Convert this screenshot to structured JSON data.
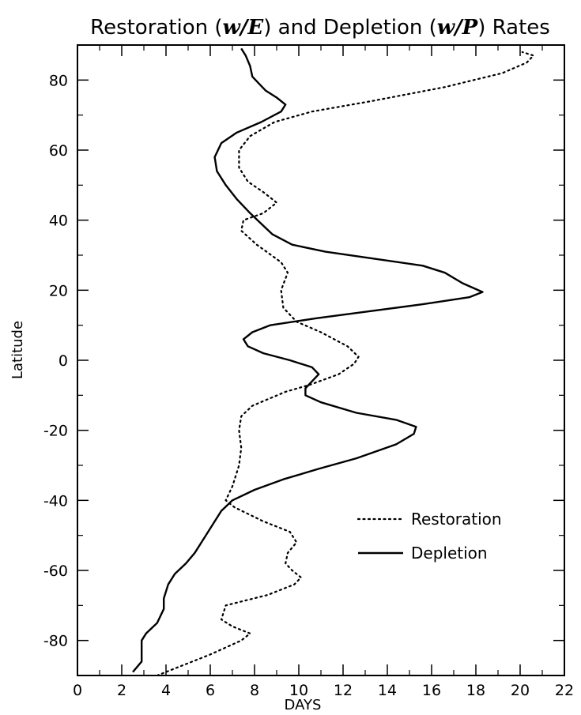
{
  "chart_data": {
    "type": "line",
    "title": "Restoration (w/E) and Depletion (w/P) Rates",
    "title_parts": {
      "t1": "Restoration (",
      "v1": "w/E",
      "t2": ") and Depletion (",
      "v2": "w/P",
      "t3": ") Rates"
    },
    "xlabel": "DAYS",
    "ylabel": "Latitude",
    "xlim": [
      0,
      22
    ],
    "ylim": [
      -90,
      90
    ],
    "xticks": [
      0,
      2,
      4,
      6,
      8,
      10,
      12,
      14,
      16,
      18,
      20,
      22
    ],
    "yticks": [
      -80,
      -60,
      -40,
      -20,
      0,
      20,
      40,
      60,
      80
    ],
    "grid": false,
    "legend_position": "lower-right",
    "series": [
      {
        "name": "Restoration",
        "style": "dotted",
        "color": "#000000",
        "points": [
          [
            3.6,
            -90
          ],
          [
            4.4,
            -88
          ],
          [
            6.0,
            -84
          ],
          [
            7.4,
            -80
          ],
          [
            7.8,
            -78
          ],
          [
            7.0,
            -76
          ],
          [
            6.5,
            -74
          ],
          [
            6.7,
            -70
          ],
          [
            8.6,
            -67
          ],
          [
            9.8,
            -64
          ],
          [
            10.1,
            -62
          ],
          [
            9.7,
            -60
          ],
          [
            9.4,
            -58
          ],
          [
            9.5,
            -55
          ],
          [
            9.9,
            -52
          ],
          [
            9.6,
            -49
          ],
          [
            8.4,
            -46
          ],
          [
            7.1,
            -42
          ],
          [
            6.7,
            -40
          ],
          [
            7.0,
            -36
          ],
          [
            7.3,
            -30
          ],
          [
            7.4,
            -25
          ],
          [
            7.3,
            -20
          ],
          [
            7.4,
            -16
          ],
          [
            7.9,
            -13
          ],
          [
            9.4,
            -9
          ],
          [
            10.5,
            -7
          ],
          [
            11.8,
            -4
          ],
          [
            12.5,
            -1
          ],
          [
            12.7,
            1
          ],
          [
            12.2,
            4
          ],
          [
            11.0,
            8
          ],
          [
            9.9,
            11
          ],
          [
            9.3,
            15
          ],
          [
            9.2,
            20
          ],
          [
            9.5,
            25
          ],
          [
            9.2,
            28
          ],
          [
            8.1,
            33
          ],
          [
            7.4,
            37
          ],
          [
            7.5,
            40
          ],
          [
            8.4,
            42
          ],
          [
            9.0,
            45
          ],
          [
            8.4,
            48
          ],
          [
            7.7,
            51
          ],
          [
            7.3,
            55
          ],
          [
            7.3,
            60
          ],
          [
            7.8,
            64
          ],
          [
            8.9,
            68
          ],
          [
            10.6,
            71
          ],
          [
            13.3,
            74
          ],
          [
            16.6,
            78
          ],
          [
            19.2,
            82
          ],
          [
            20.3,
            85
          ],
          [
            20.6,
            87
          ],
          [
            20.1,
            88
          ]
        ]
      },
      {
        "name": "Depletion",
        "style": "solid",
        "color": "#000000",
        "points": [
          [
            2.5,
            -89
          ],
          [
            2.9,
            -86
          ],
          [
            2.9,
            -83
          ],
          [
            2.9,
            -80
          ],
          [
            3.1,
            -78
          ],
          [
            3.6,
            -75
          ],
          [
            3.9,
            -71
          ],
          [
            3.9,
            -68
          ],
          [
            4.1,
            -64
          ],
          [
            4.4,
            -61
          ],
          [
            4.9,
            -58
          ],
          [
            5.3,
            -55
          ],
          [
            5.7,
            -51
          ],
          [
            6.1,
            -47
          ],
          [
            6.5,
            -43
          ],
          [
            7.0,
            -40
          ],
          [
            8.0,
            -37
          ],
          [
            9.3,
            -34
          ],
          [
            10.9,
            -31
          ],
          [
            12.6,
            -28
          ],
          [
            14.4,
            -24
          ],
          [
            15.2,
            -21
          ],
          [
            15.3,
            -19
          ],
          [
            14.4,
            -17
          ],
          [
            12.6,
            -15
          ],
          [
            11.0,
            -12
          ],
          [
            10.3,
            -10
          ],
          [
            10.3,
            -8
          ],
          [
            10.6,
            -6
          ],
          [
            10.9,
            -4
          ],
          [
            10.6,
            -2
          ],
          [
            9.6,
            0
          ],
          [
            8.4,
            2
          ],
          [
            7.7,
            4
          ],
          [
            7.5,
            6
          ],
          [
            7.9,
            8
          ],
          [
            8.7,
            10
          ],
          [
            10.8,
            12
          ],
          [
            13.2,
            14
          ],
          [
            15.6,
            16
          ],
          [
            17.7,
            18
          ],
          [
            18.3,
            19.5
          ],
          [
            17.4,
            22
          ],
          [
            16.6,
            25
          ],
          [
            15.6,
            27
          ],
          [
            13.4,
            29
          ],
          [
            11.2,
            31
          ],
          [
            9.7,
            33
          ],
          [
            8.8,
            36
          ],
          [
            8.3,
            39
          ],
          [
            7.8,
            42
          ],
          [
            7.2,
            46
          ],
          [
            6.7,
            50
          ],
          [
            6.3,
            54
          ],
          [
            6.2,
            58
          ],
          [
            6.5,
            62
          ],
          [
            7.2,
            65
          ],
          [
            8.3,
            68
          ],
          [
            9.2,
            71
          ],
          [
            9.4,
            73
          ],
          [
            9.0,
            75
          ],
          [
            8.5,
            77
          ],
          [
            8.2,
            79
          ],
          [
            7.9,
            81
          ],
          [
            7.8,
            84
          ],
          [
            7.6,
            87
          ],
          [
            7.4,
            89
          ]
        ]
      }
    ]
  }
}
